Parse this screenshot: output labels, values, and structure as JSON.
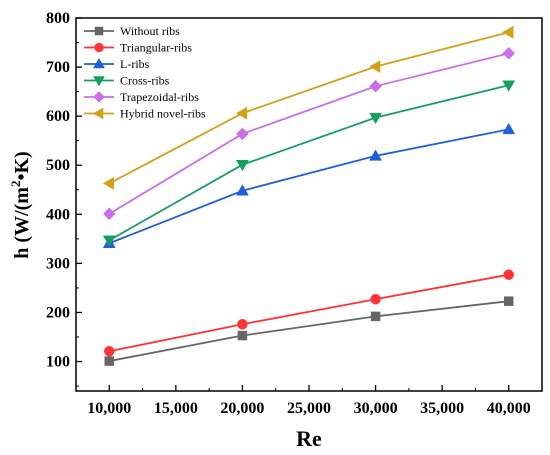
{
  "chart_data": {
    "type": "line",
    "xlabel": "Re",
    "ylabel": {
      "prefix": "h  (W/(m",
      "superscript": "2",
      "suffix": "•K)"
    },
    "xlim": [
      7500,
      42500
    ],
    "ylim": [
      40,
      800
    ],
    "xticks": [
      10000,
      15000,
      20000,
      25000,
      30000,
      35000,
      40000
    ],
    "xtick_labels": [
      "10,000",
      "15,000",
      "20,000",
      "25,000",
      "30,000",
      "35,000",
      "40,000"
    ],
    "yticks": [
      100,
      200,
      300,
      400,
      500,
      600,
      700,
      800
    ],
    "ytick_labels": [
      "100",
      "200",
      "300",
      "400",
      "500",
      "600",
      "700",
      "800"
    ],
    "grid": false,
    "legend_position": "top-left",
    "x": [
      10000,
      20000,
      30000,
      40000
    ],
    "series": [
      {
        "name": "Without ribs",
        "color": "#666666",
        "marker": "square",
        "values": [
          101,
          153,
          192,
          223
        ]
      },
      {
        "name": "Triangular-ribs",
        "color": "#ff3333",
        "marker": "circle",
        "values": [
          121,
          176,
          227,
          277
        ]
      },
      {
        "name": "L-ribs",
        "color": "#1f5fd9",
        "marker": "triangle-up",
        "values": [
          341,
          448,
          519,
          573
        ]
      },
      {
        "name": "Cross-ribs",
        "color": "#14a060",
        "marker": "triangle-down",
        "values": [
          347,
          501,
          597,
          663
        ]
      },
      {
        "name": "Trapezoidal-ribs",
        "color": "#cc6ee6",
        "marker": "diamond",
        "values": [
          401,
          564,
          661,
          728
        ]
      },
      {
        "name": "Hybrid novel-ribs",
        "color": "#d4a017",
        "marker": "triangle-left",
        "values": [
          463,
          606,
          701,
          771
        ]
      }
    ]
  }
}
